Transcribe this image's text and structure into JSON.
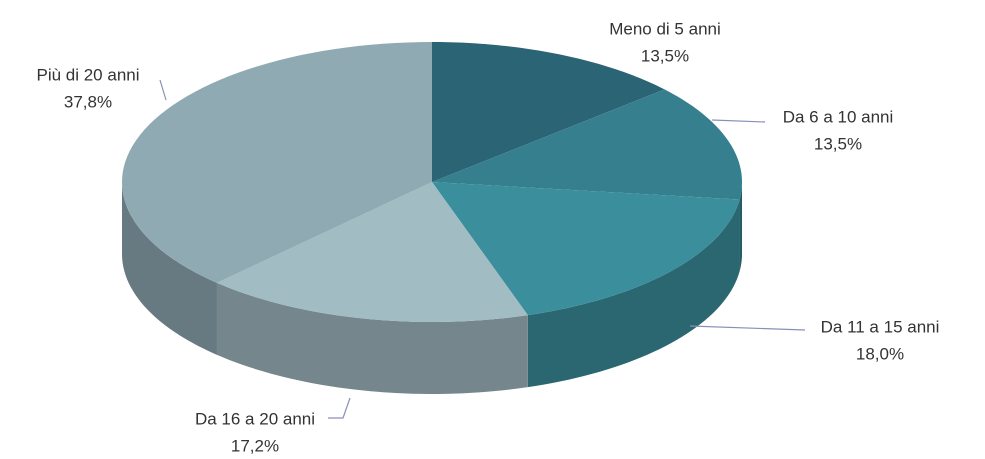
{
  "chart_data": {
    "type": "pie",
    "categories": [
      "Meno di 5 anni",
      "Da 6 a 10 anni",
      "Da 11 a 15 anni",
      "Da 16 a 20 anni",
      "Più di 20 anni"
    ],
    "values": [
      13.5,
      13.5,
      18.0,
      17.2,
      37.8
    ],
    "value_labels": [
      "13,5%",
      "13,5%",
      "18,0%",
      "17,2%",
      "37,8%"
    ],
    "colors": [
      "#2b6474",
      "#357f8f",
      "#3b8f9d",
      "#a2bcc4",
      "#8faab3"
    ]
  }
}
